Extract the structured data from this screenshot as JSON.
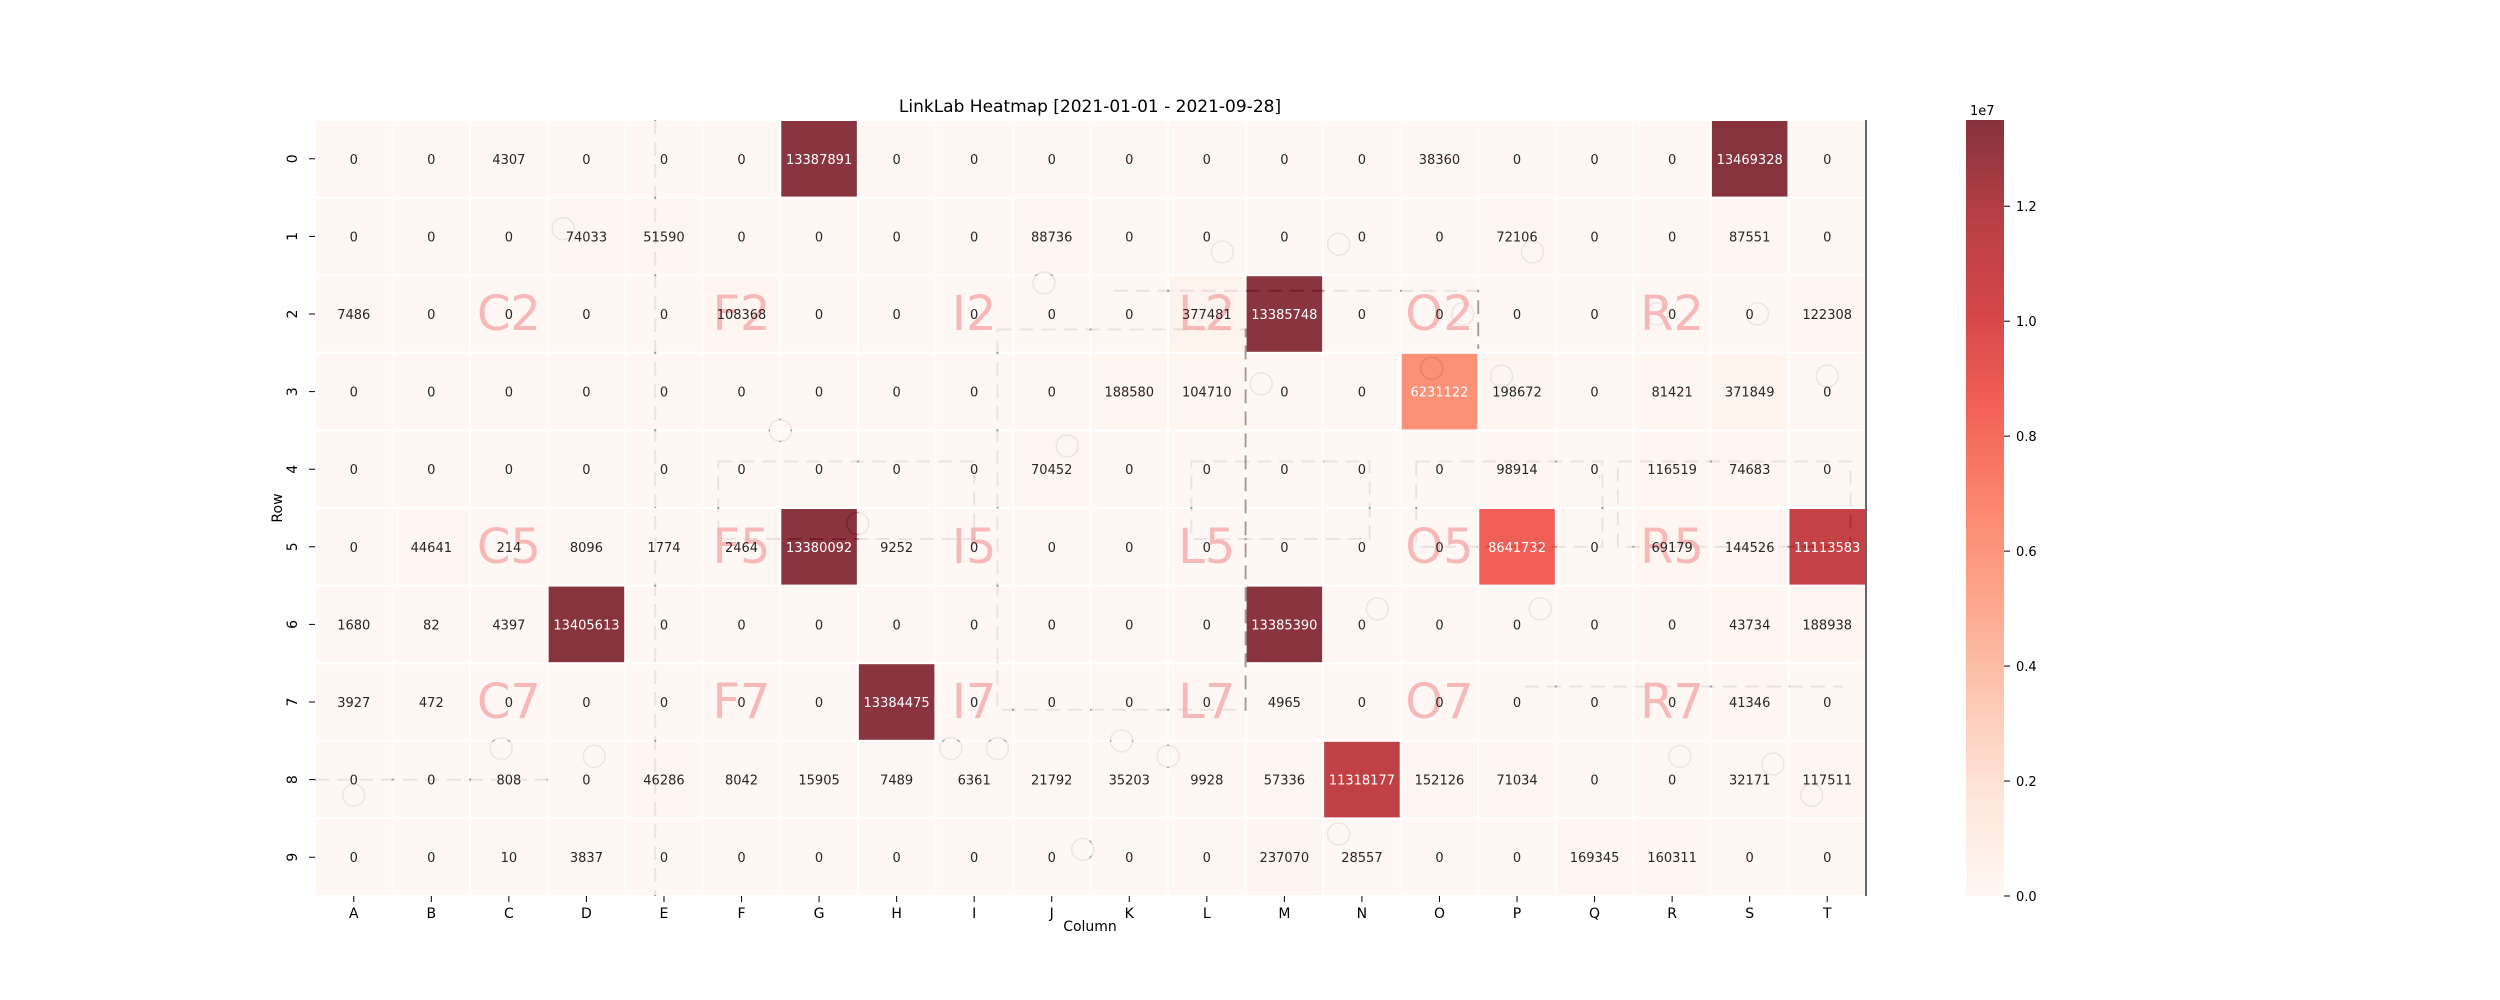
{
  "chart_data": {
    "type": "heatmap",
    "title": "LinkLab Heatmap [2021-01-01 - 2021-09-28]",
    "xlabel": "Column",
    "ylabel": "Row",
    "x_categories": [
      "A",
      "B",
      "C",
      "D",
      "E",
      "F",
      "G",
      "H",
      "I",
      "J",
      "K",
      "L",
      "M",
      "N",
      "O",
      "P",
      "Q",
      "R",
      "S",
      "T"
    ],
    "y_categories": [
      "0",
      "1",
      "2",
      "3",
      "4",
      "5",
      "6",
      "7",
      "8",
      "9"
    ],
    "values": [
      [
        0,
        0,
        4307,
        0,
        0,
        0,
        13387891,
        0,
        0,
        0,
        0,
        0,
        0,
        0,
        38360,
        0,
        0,
        0,
        13469328,
        0
      ],
      [
        0,
        0,
        0,
        74033,
        51590,
        0,
        0,
        0,
        0,
        88736,
        0,
        0,
        0,
        0,
        0,
        72106,
        0,
        0,
        87551,
        0
      ],
      [
        7486,
        0,
        0,
        0,
        0,
        108368,
        0,
        0,
        0,
        0,
        0,
        377481,
        13385748,
        0,
        0,
        0,
        0,
        0,
        0,
        122308
      ],
      [
        0,
        0,
        0,
        0,
        0,
        0,
        0,
        0,
        0,
        0,
        188580,
        104710,
        0,
        0,
        6231122,
        198672,
        0,
        81421,
        371849,
        0
      ],
      [
        0,
        0,
        0,
        0,
        0,
        0,
        0,
        0,
        0,
        70452,
        0,
        0,
        0,
        0,
        0,
        98914,
        0,
        116519,
        74683,
        0
      ],
      [
        0,
        44641,
        214,
        8096,
        1774,
        2464,
        13380092,
        9252,
        0,
        0,
        0,
        0,
        0,
        0,
        0,
        8641732,
        0,
        69179,
        144526,
        11113583
      ],
      [
        1680,
        82,
        4397,
        13405613,
        0,
        0,
        0,
        0,
        0,
        0,
        0,
        0,
        13385390,
        0,
        0,
        0,
        0,
        0,
        43734,
        188938
      ],
      [
        3927,
        472,
        0,
        0,
        0,
        0,
        0,
        13384475,
        0,
        0,
        0,
        0,
        4965,
        0,
        0,
        0,
        0,
        0,
        41346,
        0
      ],
      [
        0,
        0,
        808,
        0,
        46286,
        8042,
        15905,
        7489,
        6361,
        21792,
        35203,
        9928,
        57336,
        11318177,
        152126,
        71034,
        0,
        0,
        32171,
        117511
      ],
      [
        0,
        0,
        10,
        3837,
        0,
        0,
        0,
        0,
        0,
        0,
        0,
        0,
        237070,
        28557,
        0,
        0,
        169345,
        160311,
        0,
        0
      ]
    ],
    "vmin": 0,
    "vmax": 13500000,
    "colorbar": {
      "ticks": [
        0,
        2000000,
        4000000,
        6000000,
        8000000,
        10000000,
        12000000
      ],
      "tick_labels": [
        "0.0",
        "0.2",
        "0.4",
        "0.6",
        "0.8",
        "1.0",
        "1.2"
      ],
      "offset_label": "1e7"
    },
    "colormap": "Reds",
    "alpha": 0.8,
    "background": "floor plan",
    "watermark_labels": [
      {
        "text": "C2",
        "row": 2,
        "col": 2
      },
      {
        "text": "F2",
        "row": 2,
        "col": 5
      },
      {
        "text": "I2",
        "row": 2,
        "col": 8
      },
      {
        "text": "L2",
        "row": 2,
        "col": 11
      },
      {
        "text": "O2",
        "row": 2,
        "col": 14
      },
      {
        "text": "R2",
        "row": 2,
        "col": 17
      },
      {
        "text": "C5",
        "row": 5,
        "col": 2
      },
      {
        "text": "F5",
        "row": 5,
        "col": 5
      },
      {
        "text": "I5",
        "row": 5,
        "col": 8
      },
      {
        "text": "L5",
        "row": 5,
        "col": 11
      },
      {
        "text": "O5",
        "row": 5,
        "col": 14
      },
      {
        "text": "R5",
        "row": 5,
        "col": 17
      },
      {
        "text": "C7",
        "row": 7,
        "col": 2
      },
      {
        "text": "F7",
        "row": 7,
        "col": 5
      },
      {
        "text": "I7",
        "row": 7,
        "col": 8
      },
      {
        "text": "L7",
        "row": 7,
        "col": 11
      },
      {
        "text": "O7",
        "row": 7,
        "col": 14
      },
      {
        "text": "R7",
        "row": 7,
        "col": 17
      }
    ]
  }
}
